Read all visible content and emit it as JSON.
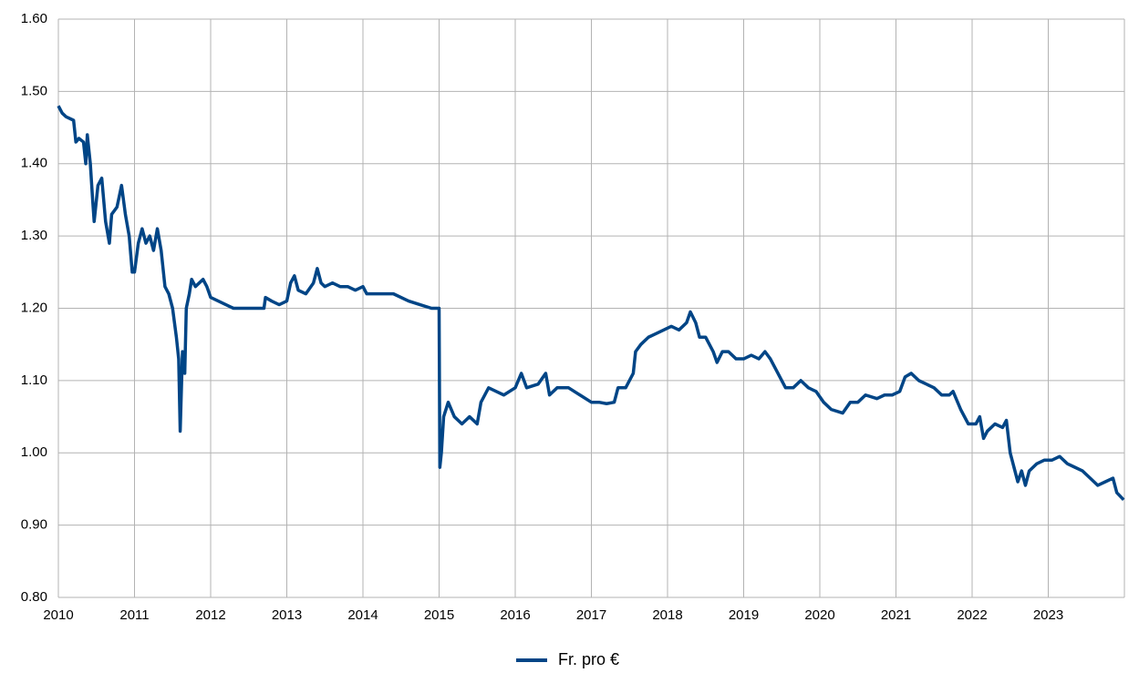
{
  "chart_data": {
    "type": "line",
    "x": [
      2010.0,
      2010.05,
      2010.1,
      2010.2,
      2010.23,
      2010.27,
      2010.33,
      2010.36,
      2010.38,
      2010.42,
      2010.45,
      2010.47,
      2010.52,
      2010.57,
      2010.62,
      2010.67,
      2010.7,
      2010.77,
      2010.83,
      2010.88,
      2010.93,
      2010.97,
      2011.0,
      2011.05,
      2011.1,
      2011.15,
      2011.2,
      2011.25,
      2011.3,
      2011.35,
      2011.4,
      2011.45,
      2011.5,
      2011.55,
      2011.58,
      2011.6,
      2011.63,
      2011.66,
      2011.68,
      2011.72,
      2011.75,
      2011.8,
      2011.9,
      2011.95,
      2012.0,
      2012.1,
      2012.2,
      2012.3,
      2012.7,
      2012.72,
      2012.8,
      2012.9,
      2013.0,
      2013.05,
      2013.1,
      2013.15,
      2013.25,
      2013.35,
      2013.4,
      2013.45,
      2013.5,
      2013.6,
      2013.7,
      2013.8,
      2013.9,
      2014.0,
      2014.05,
      2014.2,
      2014.4,
      2014.6,
      2014.75,
      2014.9,
      2015.0,
      2015.01,
      2015.03,
      2015.06,
      2015.12,
      2015.2,
      2015.3,
      2015.4,
      2015.5,
      2015.55,
      2015.65,
      2015.75,
      2015.85,
      2016.0,
      2016.08,
      2016.15,
      2016.3,
      2016.4,
      2016.45,
      2016.55,
      2016.7,
      2016.85,
      2017.0,
      2017.1,
      2017.2,
      2017.3,
      2017.35,
      2017.45,
      2017.55,
      2017.58,
      2017.65,
      2017.75,
      2017.85,
      2017.95,
      2018.05,
      2018.15,
      2018.25,
      2018.3,
      2018.37,
      2018.42,
      2018.5,
      2018.6,
      2018.65,
      2018.72,
      2018.8,
      2018.9,
      2019.0,
      2019.1,
      2019.2,
      2019.28,
      2019.35,
      2019.45,
      2019.55,
      2019.65,
      2019.75,
      2019.85,
      2019.95,
      2020.05,
      2020.15,
      2020.3,
      2020.4,
      2020.5,
      2020.6,
      2020.75,
      2020.85,
      2020.95,
      2021.05,
      2021.12,
      2021.2,
      2021.3,
      2021.4,
      2021.5,
      2021.6,
      2021.7,
      2021.75,
      2021.85,
      2021.95,
      2022.05,
      2022.1,
      2022.15,
      2022.2,
      2022.3,
      2022.4,
      2022.45,
      2022.5,
      2022.55,
      2022.6,
      2022.65,
      2022.7,
      2022.75,
      2022.85,
      2022.95,
      2023.05,
      2023.15,
      2023.25,
      2023.35,
      2023.45,
      2023.55,
      2023.65,
      2023.75,
      2023.85,
      2023.9,
      2023.99
    ],
    "series": [
      {
        "name": "Fr. pro €",
        "color": "#004586",
        "values": [
          1.48,
          1.47,
          1.465,
          1.46,
          1.43,
          1.435,
          1.43,
          1.4,
          1.44,
          1.4,
          1.35,
          1.32,
          1.37,
          1.38,
          1.32,
          1.29,
          1.33,
          1.34,
          1.37,
          1.33,
          1.3,
          1.25,
          1.25,
          1.29,
          1.31,
          1.29,
          1.3,
          1.28,
          1.31,
          1.28,
          1.23,
          1.22,
          1.2,
          1.16,
          1.13,
          1.03,
          1.14,
          1.11,
          1.2,
          1.22,
          1.24,
          1.23,
          1.24,
          1.23,
          1.215,
          1.21,
          1.205,
          1.2,
          1.2,
          1.215,
          1.21,
          1.205,
          1.21,
          1.235,
          1.245,
          1.225,
          1.22,
          1.235,
          1.255,
          1.235,
          1.23,
          1.235,
          1.23,
          1.23,
          1.225,
          1.23,
          1.22,
          1.22,
          1.22,
          1.21,
          1.205,
          1.2,
          1.2,
          0.98,
          1.0,
          1.05,
          1.07,
          1.05,
          1.04,
          1.05,
          1.04,
          1.07,
          1.09,
          1.085,
          1.08,
          1.09,
          1.11,
          1.09,
          1.095,
          1.11,
          1.08,
          1.09,
          1.09,
          1.08,
          1.07,
          1.07,
          1.068,
          1.07,
          1.09,
          1.09,
          1.11,
          1.14,
          1.15,
          1.16,
          1.165,
          1.17,
          1.175,
          1.17,
          1.18,
          1.195,
          1.18,
          1.16,
          1.16,
          1.14,
          1.125,
          1.14,
          1.14,
          1.13,
          1.13,
          1.135,
          1.13,
          1.14,
          1.13,
          1.11,
          1.09,
          1.09,
          1.1,
          1.09,
          1.085,
          1.07,
          1.06,
          1.055,
          1.07,
          1.07,
          1.08,
          1.075,
          1.08,
          1.08,
          1.085,
          1.105,
          1.11,
          1.1,
          1.095,
          1.09,
          1.08,
          1.08,
          1.085,
          1.06,
          1.04,
          1.04,
          1.05,
          1.02,
          1.03,
          1.04,
          1.035,
          1.045,
          1.0,
          0.98,
          0.96,
          0.975,
          0.955,
          0.975,
          0.985,
          0.99,
          0.99,
          0.995,
          0.985,
          0.98,
          0.975,
          0.965,
          0.955,
          0.96,
          0.965,
          0.945,
          0.935
        ]
      }
    ],
    "xlim": [
      2010,
      2024
    ],
    "xticks": [
      2010,
      2011,
      2012,
      2013,
      2014,
      2015,
      2016,
      2017,
      2018,
      2019,
      2020,
      2021,
      2022,
      2023
    ],
    "ylim": [
      0.8,
      1.6
    ],
    "yticks": [
      {
        "value": 0.8,
        "label": "0.80"
      },
      {
        "value": 0.9,
        "label": "0.90"
      },
      {
        "value": 1.0,
        "label": "1.00"
      },
      {
        "value": 1.1,
        "label": "1.10"
      },
      {
        "value": 1.2,
        "label": "1.20"
      },
      {
        "value": 1.3,
        "label": "1.30"
      },
      {
        "value": 1.4,
        "label": "1.40"
      },
      {
        "value": 1.5,
        "label": "1.50"
      },
      {
        "value": 1.6,
        "label": "1.60"
      }
    ],
    "grid": true,
    "legend": "bottom"
  }
}
